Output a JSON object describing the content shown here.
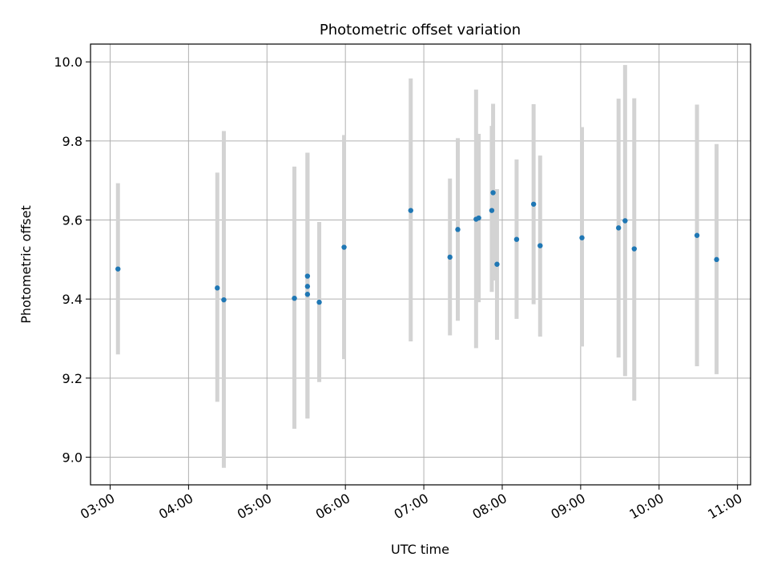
{
  "chart_data": {
    "type": "scatter",
    "title": "Photometric offset variation",
    "xlabel": "UTC time",
    "ylabel": "Photometric offset",
    "grid": true,
    "x_axis_format": "HH:MM",
    "xlim": [
      "02:45",
      "11:10"
    ],
    "ylim": [
      8.93,
      10.045
    ],
    "x_ticks": [
      "03:00",
      "04:00",
      "05:00",
      "06:00",
      "07:00",
      "08:00",
      "09:00",
      "10:00",
      "11:00"
    ],
    "y_ticks": [
      9.0,
      9.2,
      9.4,
      9.6,
      9.8,
      10.0
    ],
    "y_tick_labels": [
      "9.0",
      "9.2",
      "9.4",
      "9.6",
      "9.8",
      "10.0"
    ],
    "marker_color": "#1f77b4",
    "errorbar_color": "#d3d3d3",
    "points": [
      {
        "x": "03:06",
        "y": 9.476,
        "ylo": 9.26,
        "yhi": 9.693
      },
      {
        "x": "04:22",
        "y": 9.428,
        "ylo": 9.14,
        "yhi": 9.72
      },
      {
        "x": "04:27",
        "y": 9.398,
        "ylo": 8.973,
        "yhi": 9.825
      },
      {
        "x": "05:21",
        "y": 9.402,
        "ylo": 9.072,
        "yhi": 9.735
      },
      {
        "x": "05:31",
        "y": 9.412,
        "ylo": 9.098,
        "yhi": 9.77
      },
      {
        "x": "05:31",
        "y": 9.432,
        "ylo": 9.098,
        "yhi": 9.77
      },
      {
        "x": "05:31",
        "y": 9.458,
        "ylo": 9.098,
        "yhi": 9.77
      },
      {
        "x": "05:40",
        "y": 9.392,
        "ylo": 9.19,
        "yhi": 9.595
      },
      {
        "x": "05:59",
        "y": 9.531,
        "ylo": 9.248,
        "yhi": 9.815
      },
      {
        "x": "06:50",
        "y": 9.624,
        "ylo": 9.293,
        "yhi": 9.958
      },
      {
        "x": "07:20",
        "y": 9.506,
        "ylo": 9.308,
        "yhi": 9.705
      },
      {
        "x": "07:26",
        "y": 9.576,
        "ylo": 9.345,
        "yhi": 9.807
      },
      {
        "x": "07:40",
        "y": 9.602,
        "ylo": 9.276,
        "yhi": 9.93
      },
      {
        "x": "07:42",
        "y": 9.605,
        "ylo": 9.392,
        "yhi": 9.818
      },
      {
        "x": "07:52",
        "y": 9.624,
        "ylo": 9.418,
        "yhi": 9.838
      },
      {
        "x": "07:53",
        "y": 9.669,
        "ylo": 9.447,
        "yhi": 9.894
      },
      {
        "x": "07:56",
        "y": 9.488,
        "ylo": 9.297,
        "yhi": 9.678
      },
      {
        "x": "08:11",
        "y": 9.551,
        "ylo": 9.35,
        "yhi": 9.753
      },
      {
        "x": "08:24",
        "y": 9.64,
        "ylo": 9.387,
        "yhi": 9.893
      },
      {
        "x": "08:29",
        "y": 9.535,
        "ylo": 9.305,
        "yhi": 9.763
      },
      {
        "x": "09:01",
        "y": 9.555,
        "ylo": 9.28,
        "yhi": 9.835
      },
      {
        "x": "09:29",
        "y": 9.58,
        "ylo": 9.252,
        "yhi": 9.907
      },
      {
        "x": "09:34",
        "y": 9.598,
        "ylo": 9.205,
        "yhi": 9.992
      },
      {
        "x": "09:41",
        "y": 9.527,
        "ylo": 9.143,
        "yhi": 9.908
      },
      {
        "x": "10:29",
        "y": 9.561,
        "ylo": 9.23,
        "yhi": 9.892
      },
      {
        "x": "10:44",
        "y": 9.5,
        "ylo": 9.21,
        "yhi": 9.792
      }
    ]
  }
}
